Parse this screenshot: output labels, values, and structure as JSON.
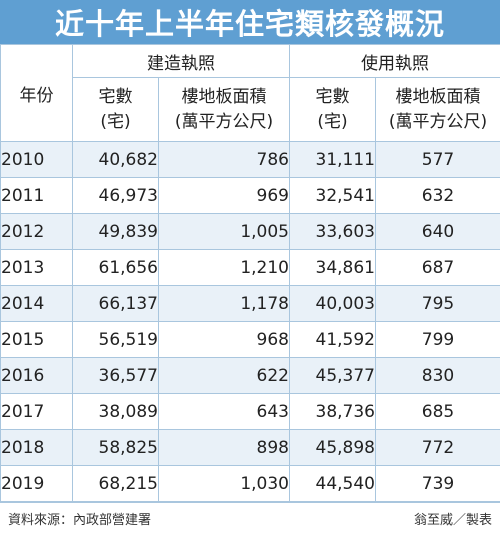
{
  "chart_data": {
    "type": "table",
    "title": "近十年上半年住宅類核發概況",
    "year_header": "年份",
    "groups": [
      "建造執照",
      "使用執照"
    ],
    "sub_headers": [
      [
        "宅數",
        "(宅)"
      ],
      [
        "樓地板面積",
        "(萬平方公尺)"
      ],
      [
        "宅數",
        "(宅)"
      ],
      [
        "樓地板面積",
        "(萬平方公尺)"
      ]
    ],
    "rows": [
      {
        "year": "2010",
        "cells": [
          "40,682",
          "786",
          "31,111",
          "577"
        ]
      },
      {
        "year": "2011",
        "cells": [
          "46,973",
          "969",
          "32,541",
          "632"
        ]
      },
      {
        "year": "2012",
        "cells": [
          "49,839",
          "1,005",
          "33,603",
          "640"
        ]
      },
      {
        "year": "2013",
        "cells": [
          "61,656",
          "1,210",
          "34,861",
          "687"
        ]
      },
      {
        "year": "2014",
        "cells": [
          "66,137",
          "1,178",
          "40,003",
          "795"
        ]
      },
      {
        "year": "2015",
        "cells": [
          "56,519",
          "968",
          "41,592",
          "799"
        ]
      },
      {
        "year": "2016",
        "cells": [
          "36,577",
          "622",
          "45,377",
          "830"
        ]
      },
      {
        "year": "2017",
        "cells": [
          "38,089",
          "643",
          "38,736",
          "685"
        ]
      },
      {
        "year": "2018",
        "cells": [
          "58,825",
          "898",
          "45,898",
          "772"
        ]
      },
      {
        "year": "2019",
        "cells": [
          "68,215",
          "1,030",
          "44,540",
          "739"
        ]
      }
    ],
    "source": "資料來源：內政部營建署",
    "credit": "翁至威／製表"
  },
  "colors": {
    "title_background": "#5f9fd2",
    "stripe": "#e9f1f8",
    "border": "#a9c6de"
  }
}
